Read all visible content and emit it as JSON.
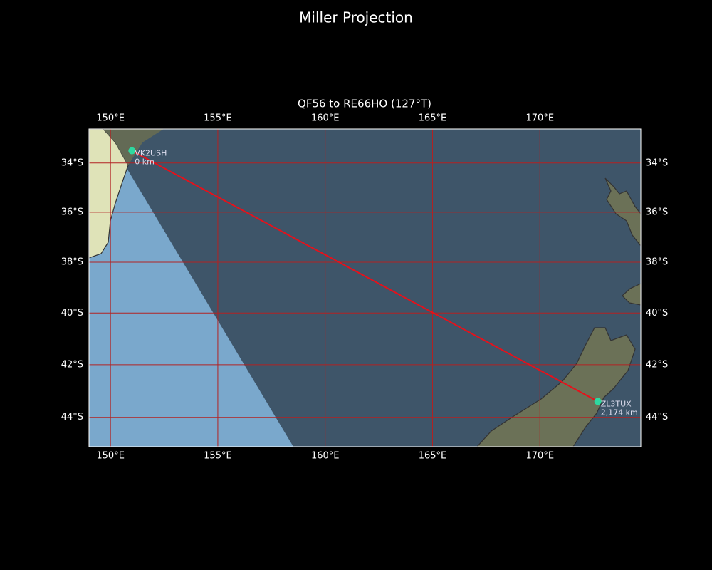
{
  "title": "Miller Projection",
  "map": {
    "title": "QF56 to RE66HO (127°T)",
    "projection": "miller",
    "xlim": [
      149.0,
      174.7
    ],
    "ylim": [
      -45.1,
      -32.6
    ],
    "xticks": [
      {
        "value": 150,
        "label": "150°E"
      },
      {
        "value": 155,
        "label": "155°E"
      },
      {
        "value": 160,
        "label": "160°E"
      },
      {
        "value": 165,
        "label": "165°E"
      },
      {
        "value": 170,
        "label": "170°E"
      }
    ],
    "yticks": [
      {
        "value": -34,
        "label": "34°S"
      },
      {
        "value": -36,
        "label": "36°S"
      },
      {
        "value": -38,
        "label": "38°S"
      },
      {
        "value": -40,
        "label": "40°S"
      },
      {
        "value": -42,
        "label": "42°S"
      },
      {
        "value": -44,
        "label": "44°S"
      }
    ],
    "grid": true,
    "grid_color": "#b22222",
    "route_color": "#e8101a",
    "marker_color": "#2ed8a0",
    "markers": [
      {
        "name": "VK2USH",
        "lon": 151.0,
        "lat": -33.5,
        "label": "0 km"
      },
      {
        "name": "ZL3TUX",
        "lon": 172.7,
        "lat": -43.4,
        "label": "2,174 km"
      }
    ]
  }
}
